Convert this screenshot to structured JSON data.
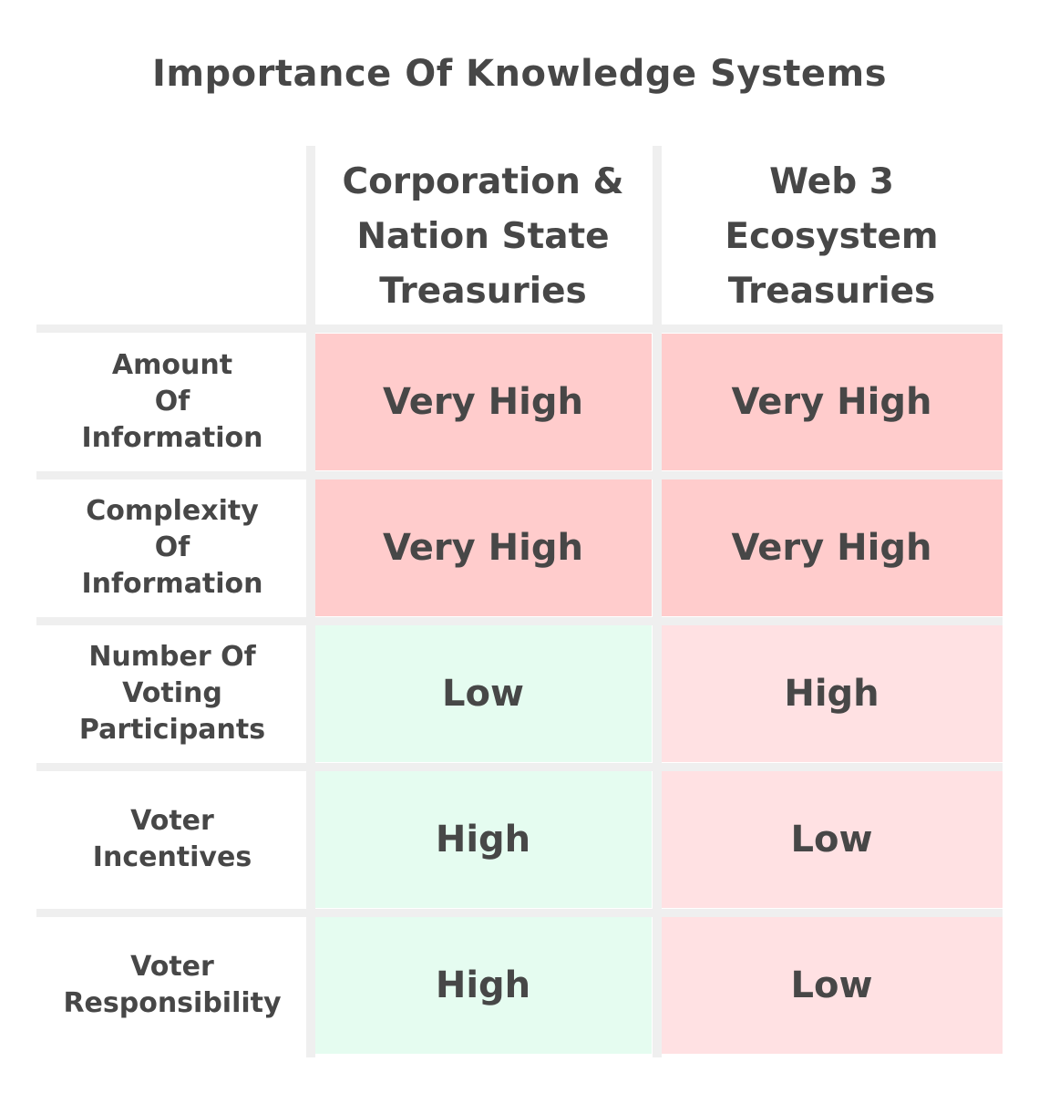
{
  "chart_data": {
    "type": "table",
    "title": "Importance Of Knowledge Systems",
    "columns": [
      [
        "Corporation &",
        "Nation State",
        "Treasuries"
      ],
      [
        "Web 3",
        "Ecosystem",
        "Treasuries"
      ]
    ],
    "rows": [
      {
        "label": [
          "Amount",
          "Of",
          "Information"
        ],
        "values": [
          "Very High",
          "Very High"
        ],
        "colors": [
          "#ffcccc",
          "#ffcccc"
        ]
      },
      {
        "label": [
          "Complexity",
          "Of",
          "Information"
        ],
        "values": [
          "Very High",
          "Very High"
        ],
        "colors": [
          "#ffcccc",
          "#ffcccc"
        ]
      },
      {
        "label": [
          "Number Of",
          "Voting",
          "Participants"
        ],
        "values": [
          "Low",
          "High"
        ],
        "colors": [
          "#e5fcf0",
          "#ffe1e3"
        ]
      },
      {
        "label": [
          "Voter",
          "Incentives"
        ],
        "values": [
          "High",
          "Low"
        ],
        "colors": [
          "#e5fcf0",
          "#ffe1e3"
        ]
      },
      {
        "label": [
          "Voter",
          "Responsibility"
        ],
        "values": [
          "High",
          "Low"
        ],
        "colors": [
          "#e5fcf0",
          "#ffe1e3"
        ]
      }
    ],
    "colors": {
      "text": "#474747",
      "grid": "#efefef",
      "very_high": "#ffcccc",
      "high_highlight": "#ffe1e3",
      "favorable": "#e5fcf0"
    }
  }
}
